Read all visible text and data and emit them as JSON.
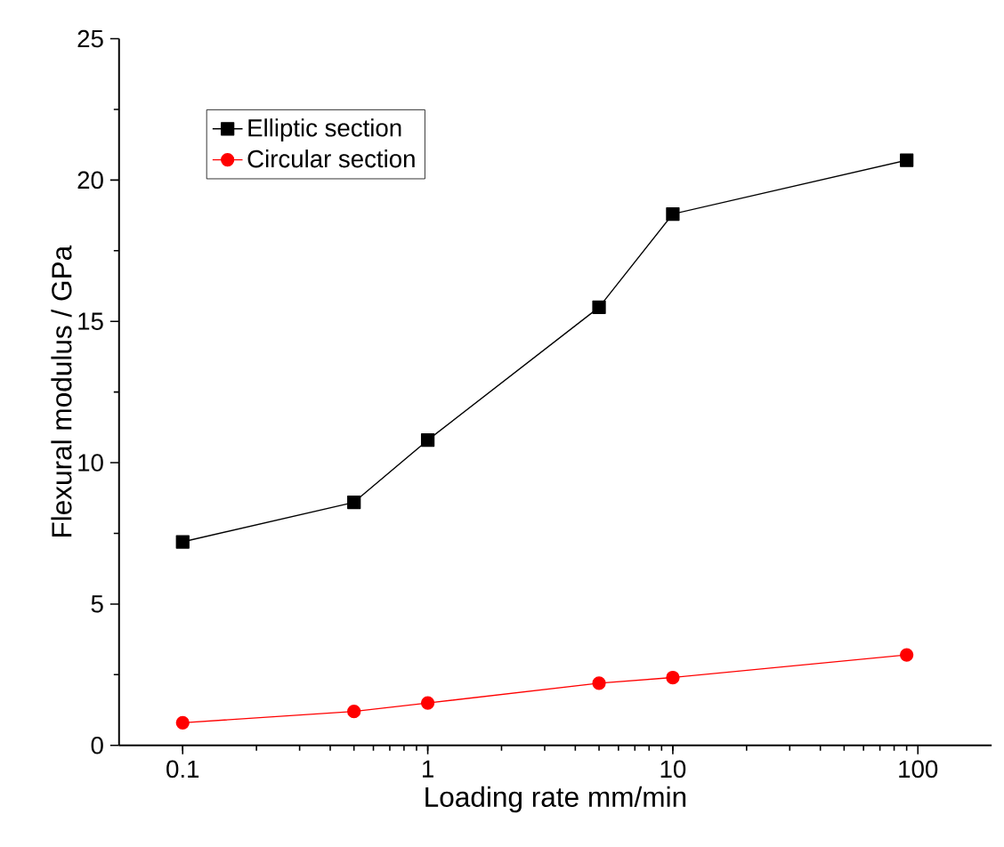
{
  "chart_data": {
    "type": "line",
    "xlabel": "Loading rate  mm/min",
    "ylabel": "Flexural modulus / GPa",
    "x": [
      0.1,
      0.5,
      1,
      5,
      10,
      90
    ],
    "series": [
      {
        "name": "Elliptic section",
        "color": "#000000",
        "marker": "square",
        "values": [
          7.2,
          8.6,
          10.8,
          15.5,
          18.8,
          20.7
        ]
      },
      {
        "name": "Circular section",
        "color": "#ff0000",
        "marker": "circle",
        "values": [
          0.8,
          1.2,
          1.5,
          2.2,
          2.4,
          3.2
        ]
      }
    ],
    "log": "x",
    "xlim": [
      0.055,
      200
    ],
    "xticks": [
      0.1,
      1,
      10,
      100
    ],
    "ylim": [
      0,
      25
    ],
    "yticks": [
      0,
      5,
      10,
      15,
      20,
      25
    ],
    "grid": false,
    "legend": "top left",
    "line_style": "solid"
  }
}
